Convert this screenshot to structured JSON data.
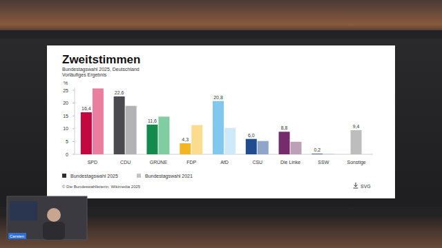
{
  "chart_data": {
    "type": "bar",
    "title": "Zweitstimmen",
    "subtitle": [
      "Bundestagswahl 2025, Deutschland",
      "Vorläufiges Ergebnis"
    ],
    "y_label": "%",
    "categories": [
      "SPD",
      "CDU",
      "GRÜNE",
      "FDP",
      "AfD",
      "CSU",
      "Die Linke",
      "SSW",
      "Sonstige"
    ],
    "series": [
      {
        "name": "Bundestagswahl 2025",
        "color": "#2f2f33",
        "colors": [
          "#c3073f",
          "#4b4b4f",
          "#148a4e",
          "#f2b526",
          "#82c8ee",
          "#1f4d8e",
          "#782b6c",
          "#1c3f75",
          "#bdbdbd"
        ],
        "values": [
          16.4,
          22.6,
          11.6,
          4.3,
          20.8,
          6.0,
          8.8,
          0.2,
          9.4
        ],
        "value_labels": [
          "16,4",
          "22,6",
          "11,6",
          "4,3",
          "20,8",
          "6,0",
          "8,8",
          "0,2",
          "9,4"
        ]
      },
      {
        "name": "Bundestagswahl 2021",
        "color": "#c4c4c4",
        "colors": [
          "#ea7ea0",
          "#b3b3b6",
          "#7fcda0",
          "#fbdc8e",
          "#cfe9f8",
          "#8ea6ca",
          "#bba0b6",
          "#99aac4",
          "#dddddd"
        ],
        "values": [
          25.7,
          18.9,
          14.7,
          11.4,
          10.3,
          5.2,
          4.9,
          0.1,
          null
        ]
      }
    ],
    "ylim": [
      0,
      26
    ],
    "yticks": [
      0,
      5,
      10,
      15,
      20,
      25
    ],
    "grid": false,
    "data_labels": true,
    "legend": "bottom-left",
    "annotations": [
      "© Die Bundeswahlleiterin, Wikimedia 2025",
      "SVG",
      "Carsten"
    ]
  }
}
